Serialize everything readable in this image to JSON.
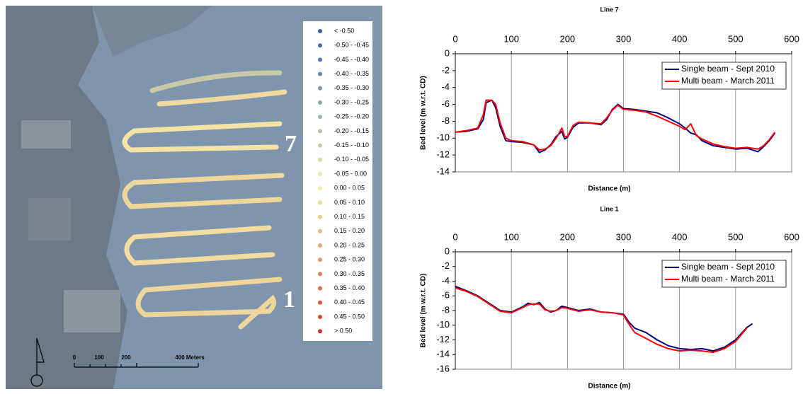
{
  "map": {
    "legend": [
      {
        "label": "< -0.50",
        "color": "#2f5fa8"
      },
      {
        "label": "-0.50 - -0.45",
        "color": "#3f6aab"
      },
      {
        "label": "-0.45 - -0.40",
        "color": "#5279ad"
      },
      {
        "label": "-0.40 - -0.35",
        "color": "#6687ae"
      },
      {
        "label": "-0.35 - -0.30",
        "color": "#7a95ae"
      },
      {
        "label": "-0.30 - -0.25",
        "color": "#8da3ad"
      },
      {
        "label": "-0.25 - -0.20",
        "color": "#a0b1aa"
      },
      {
        "label": "-0.20 - -0.15",
        "color": "#b3bfa6"
      },
      {
        "label": "-0.15 - -0.10",
        "color": "#c5cda3"
      },
      {
        "label": "-0.10 - -0.05",
        "color": "#d8dba0"
      },
      {
        "label": "-0.05 - 0.00",
        "color": "#ebe9a0"
      },
      {
        "label": "0.00 - 0.05",
        "color": "#f7e7a1"
      },
      {
        "label": "0.05 - 0.10",
        "color": "#f6d897"
      },
      {
        "label": "0.10 - 0.15",
        "color": "#f4c88a"
      },
      {
        "label": "0.15 - 0.20",
        "color": "#f2b77d"
      },
      {
        "label": "0.20 - 0.25",
        "color": "#efa570"
      },
      {
        "label": "0.25 - 0.30",
        "color": "#ec9263"
      },
      {
        "label": "0.30 - 0.35",
        "color": "#e87f56"
      },
      {
        "label": "0.35 - 0.40",
        "color": "#e46b48"
      },
      {
        "label": "0.40 - 0.45",
        "color": "#df573a"
      },
      {
        "label": "0.45 - 0.50",
        "color": "#d9422c"
      },
      {
        "label": "> 0.50",
        "color": "#d22d1e"
      }
    ],
    "scale_labels": [
      "0",
      "100",
      "200",
      "400 Meters"
    ],
    "line_labels": [
      "7",
      "1"
    ]
  },
  "chart_data": [
    {
      "type": "line",
      "title": "Line 7",
      "x_label": "Distance (m)",
      "y_label": "Bed level (m w.r.t. CD)",
      "x": [
        0,
        20,
        40,
        50,
        55,
        65,
        72,
        80,
        90,
        100,
        120,
        140,
        150,
        160,
        170,
        180,
        190,
        195,
        200,
        210,
        220,
        240,
        260,
        270,
        280,
        290,
        300,
        320,
        340,
        360,
        380,
        400,
        410,
        420,
        430,
        440,
        460,
        480,
        500,
        520,
        540,
        550,
        560,
        570
      ],
      "series": [
        {
          "name": "Single beam - Sept 2010",
          "color": "#000080",
          "values": [
            -9.3,
            -9.2,
            -8.9,
            -7.8,
            -5.8,
            -5.5,
            -6.4,
            -8.6,
            -10.3,
            -10.4,
            -10.5,
            -10.8,
            -11.7,
            -11.4,
            -10.8,
            -9.8,
            -9.2,
            -10.1,
            -9.9,
            -8.7,
            -8.2,
            -8.2,
            -8.4,
            -7.8,
            -6.6,
            -6.0,
            -6.5,
            -6.6,
            -6.8,
            -7.0,
            -7.6,
            -8.3,
            -8.8,
            -9.4,
            -9.6,
            -10.3,
            -10.9,
            -11.1,
            -11.3,
            -11.2,
            -11.6,
            -11.0,
            -10.3,
            -9.4
          ]
        },
        {
          "name": "Multi beam - March 2011",
          "color": "#ff0000",
          "values": [
            -9.3,
            -9.1,
            -8.8,
            -7.2,
            -5.5,
            -5.5,
            -6.0,
            -8.2,
            -10.0,
            -10.3,
            -10.4,
            -10.8,
            -11.4,
            -11.3,
            -10.9,
            -10.0,
            -8.8,
            -9.8,
            -9.8,
            -8.5,
            -8.1,
            -8.2,
            -8.3,
            -7.6,
            -6.7,
            -6.1,
            -6.6,
            -6.7,
            -6.9,
            -7.4,
            -8.0,
            -8.6,
            -9.0,
            -8.3,
            -9.7,
            -10.1,
            -10.7,
            -11.0,
            -11.2,
            -11.1,
            -11.3,
            -10.9,
            -10.2,
            -9.3
          ]
        }
      ],
      "xlim": [
        0,
        600
      ],
      "xticks": [
        0,
        100,
        200,
        300,
        400,
        500,
        600
      ],
      "ylim": [
        -14,
        0
      ],
      "yticks": [
        0,
        -2,
        -4,
        -6,
        -8,
        -10,
        -12,
        -14
      ],
      "grid": "x",
      "legend": "upper right"
    },
    {
      "type": "line",
      "title": "Line 1",
      "x_label": "Distance (m)",
      "y_label": "Bed level (m w.r.t. CD)",
      "x": [
        0,
        20,
        40,
        60,
        80,
        100,
        120,
        130,
        140,
        150,
        160,
        170,
        180,
        190,
        200,
        220,
        240,
        260,
        280,
        300,
        310,
        320,
        340,
        360,
        380,
        400,
        420,
        440,
        460,
        480,
        500,
        520,
        530
      ],
      "series": [
        {
          "name": "Single beam - Sept 2010",
          "color": "#000080",
          "values": [
            -4.7,
            -5.3,
            -6.0,
            -7.0,
            -8.0,
            -8.2,
            -7.5,
            -7.0,
            -7.2,
            -6.9,
            -7.8,
            -8.2,
            -8.0,
            -7.4,
            -7.6,
            -8.0,
            -7.8,
            -8.2,
            -8.3,
            -8.5,
            -9.6,
            -10.4,
            -11.0,
            -12.0,
            -12.8,
            -13.2,
            -13.3,
            -13.2,
            -13.5,
            -13.0,
            -12.0,
            -10.3,
            -9.8
          ]
        },
        {
          "name": "Multi beam - March 2011",
          "color": "#ff0000",
          "values": [
            -4.9,
            -5.4,
            -6.1,
            -7.1,
            -8.1,
            -8.3,
            -7.6,
            -7.2,
            -7.1,
            -7.1,
            -7.9,
            -8.1,
            -8.0,
            -7.6,
            -7.7,
            -8.1,
            -7.9,
            -8.2,
            -8.3,
            -8.6,
            -9.9,
            -11.0,
            -11.8,
            -12.6,
            -13.2,
            -13.5,
            -13.4,
            -13.5,
            -13.7,
            -13.2,
            -12.2,
            -10.4,
            null
          ]
        }
      ],
      "xlim": [
        0,
        600
      ],
      "xticks": [
        0,
        100,
        200,
        300,
        400,
        500,
        600
      ],
      "ylim": [
        -16,
        0
      ],
      "yticks": [
        0,
        -2,
        -4,
        -6,
        -8,
        -10,
        -12,
        -14,
        -16
      ],
      "grid": "x",
      "legend": "upper right"
    }
  ]
}
